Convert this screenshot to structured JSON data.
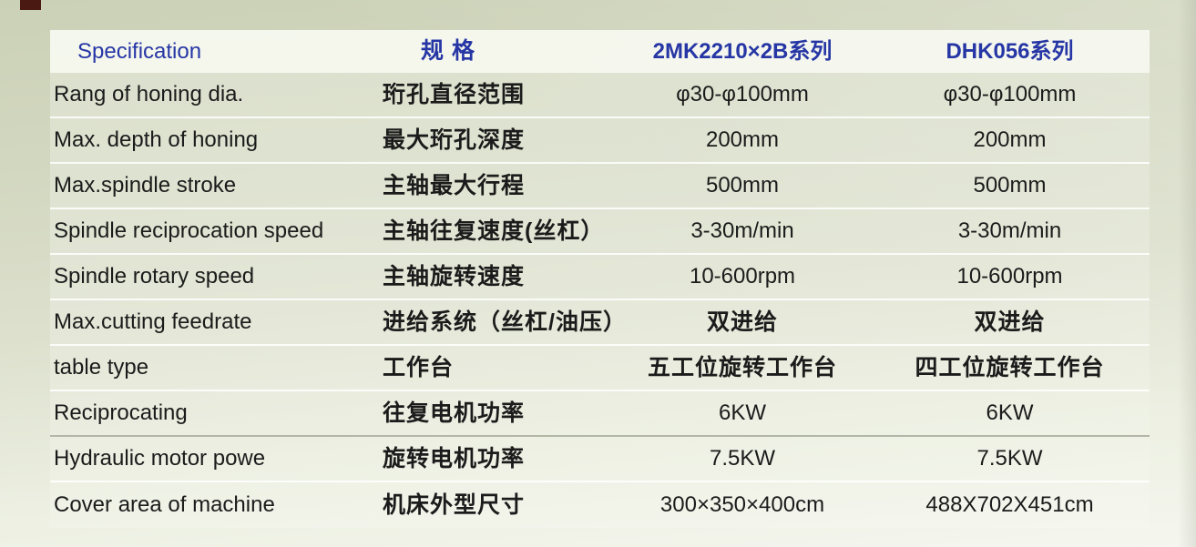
{
  "colors": {
    "header_text_blue": "#2636a5",
    "body_text": "#1b1b1b",
    "page_background_top": "#cbd1b6",
    "page_background_bottom": "#f5f6ef",
    "corner_mark": "#4a1a12"
  },
  "table": {
    "columns": [
      {
        "id": "spec-en",
        "label": "Specification"
      },
      {
        "id": "spec-zh",
        "label": "规 格"
      },
      {
        "id": "series-2mk2210",
        "label": "2MK2210×2B系列"
      },
      {
        "id": "series-dhk056",
        "label": "DHK056系列"
      }
    ],
    "rows": [
      {
        "cells": [
          "Rang of honing dia.",
          "珩孔直径范围",
          "φ30-φ100mm",
          "φ30-φ100mm"
        ]
      },
      {
        "cells": [
          "Max. depth of honing",
          "最大珩孔深度",
          "200mm",
          "200mm"
        ]
      },
      {
        "cells": [
          "Max.spindle stroke",
          "主轴最大行程",
          "500mm",
          "500mm"
        ]
      },
      {
        "cells": [
          "Spindle reciprocation speed",
          "主轴往复速度(丝杠）",
          "3-30m/min",
          "3-30m/min"
        ]
      },
      {
        "cells": [
          "Spindle rotary speed",
          "主轴旋转速度",
          "10-600rpm",
          "10-600rpm"
        ]
      },
      {
        "cells": [
          "Max.cutting feedrate",
          "进给系统（丝杠/油压）",
          "双进给",
          "双进给"
        ]
      },
      {
        "cells": [
          "table type",
          "工作台",
          "五工位旋转工作台",
          "四工位旋转工作台"
        ]
      },
      {
        "cells": [
          "Reciprocating",
          "往复电机功率",
          "6KW",
          "6KW"
        ]
      },
      {
        "cells": [
          "Hydraulic motor powe",
          "旋转电机功率",
          "7.5KW",
          "7.5KW"
        ]
      },
      {
        "cells": [
          "Cover area of machine",
          "机床外型尺寸",
          "300×350×400cm",
          "488X702X451cm"
        ]
      }
    ]
  }
}
